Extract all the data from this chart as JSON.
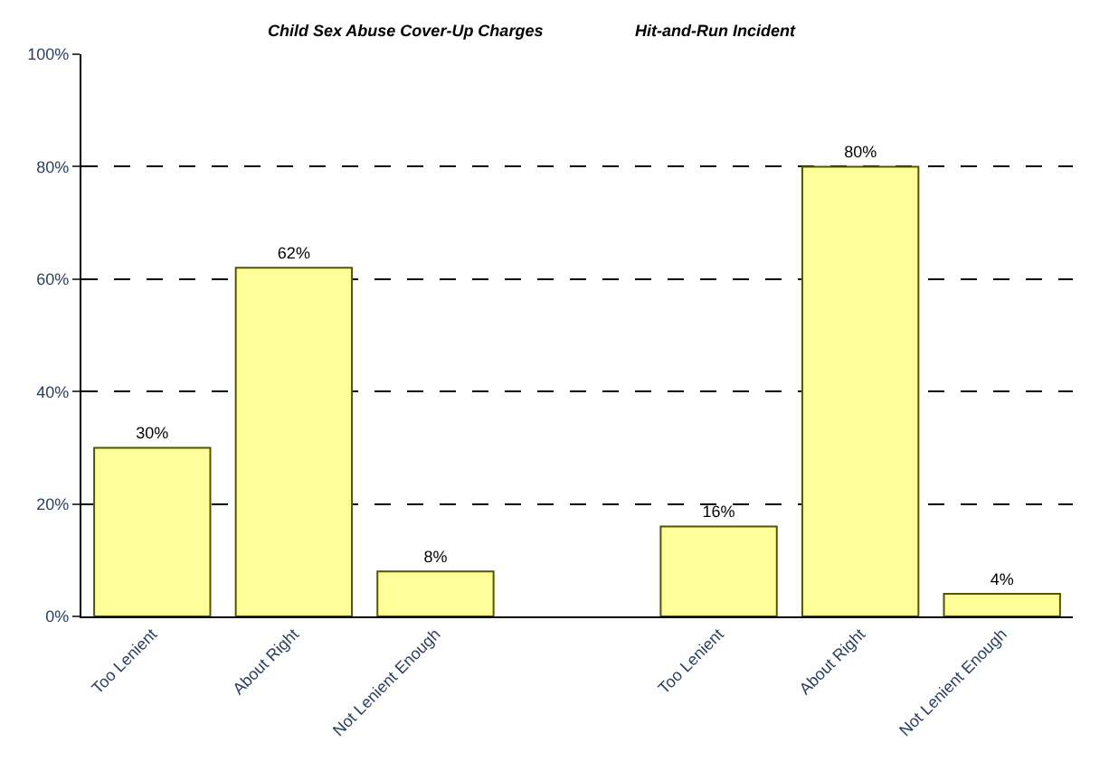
{
  "chart_data": {
    "type": "bar",
    "categories": [
      "Too Lenient",
      "About Right",
      "Not Lenient Enough",
      null,
      "Too Lenient",
      "About Right",
      "Not Lenient Enough"
    ],
    "values": [
      30,
      62,
      8,
      null,
      16,
      80,
      4
    ],
    "value_labels": [
      "30%",
      "62%",
      "8%",
      null,
      "16%",
      "80%",
      "4%"
    ],
    "color": "#ffff99",
    "ylim": [
      0,
      100
    ],
    "yticks": [
      {
        "value": 0,
        "label": "0%"
      },
      {
        "value": 20,
        "label": "20%"
      },
      {
        "value": 40,
        "label": "40%"
      },
      {
        "value": 60,
        "label": "60%"
      },
      {
        "value": 80,
        "label": "80%"
      },
      {
        "value": 100,
        "label": "100%"
      }
    ],
    "grid": "y",
    "annotations": [
      "Child Sex Abuse Cover-Up Charges",
      "Hit-and-Run Incident"
    ]
  }
}
